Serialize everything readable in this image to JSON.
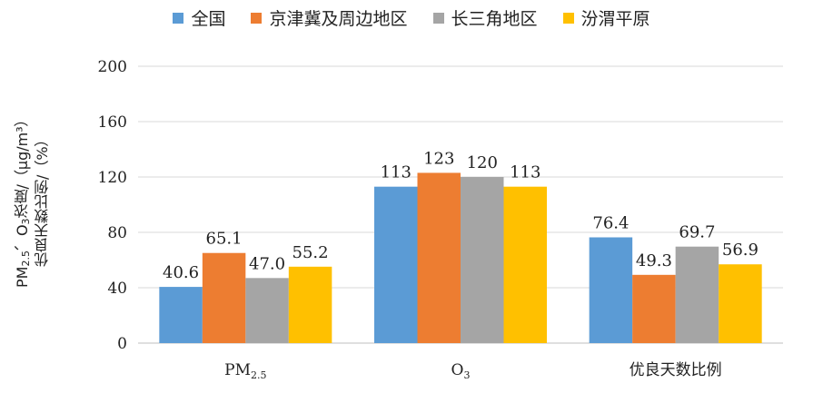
{
  "chart_data": {
    "type": "bar",
    "categories": [
      "PM2.5",
      "O3",
      "优良天数比例"
    ],
    "series": [
      {
        "name": "全国",
        "color": "#5B9BD5",
        "values": [
          40.6,
          113,
          76.4
        ]
      },
      {
        "name": "京津冀及周边地区",
        "color": "#ED7D31",
        "values": [
          65.1,
          123,
          49.3
        ]
      },
      {
        "name": "长三角地区",
        "color": "#A5A5A5",
        "values": [
          47.0,
          120,
          69.7
        ]
      },
      {
        "name": "汾渭平原",
        "color": "#FFC000",
        "values": [
          55.2,
          113,
          56.9
        ]
      }
    ],
    "data_labels": [
      [
        "40.6",
        "113",
        "76.4"
      ],
      [
        "65.1",
        "123",
        "49.3"
      ],
      [
        "47.0",
        "120",
        "69.7"
      ],
      [
        "55.2",
        "113",
        "56.9"
      ]
    ],
    "ylim": [
      0,
      200
    ],
    "yticks": [
      0,
      40,
      80,
      120,
      160,
      200
    ],
    "grid": true,
    "legend_position": "top",
    "ylabel": "PM2.5、O3浓度/（μg/m³）优良天数比例/（%）"
  },
  "axis": {
    "ylabel_line1": "PM",
    "ylabel_sub": "2.5",
    "ylabel_line1b": "、O",
    "ylabel_sub2": "3",
    "ylabel_line1c": "浓度/（μg/m³）",
    "ylabel_line2": "优良天数比例/（%）",
    "cat_labels": [
      {
        "main": "PM",
        "sub": "2.5"
      },
      {
        "main": "O",
        "sub": "3"
      },
      {
        "main": "优良天数比例",
        "sub": ""
      }
    ]
  }
}
